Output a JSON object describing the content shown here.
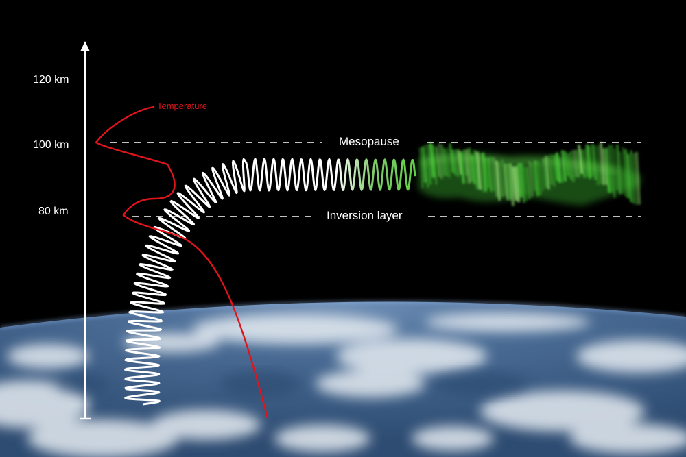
{
  "altitude_axis": {
    "ticks": [
      "120 km",
      "100 km",
      "80 km"
    ]
  },
  "layers": {
    "upper": "Mesopause",
    "lower": "Inversion layer"
  },
  "temperature_label": "Temperature",
  "colors": {
    "background": "#000000",
    "axis": "#ffffff",
    "temperature": "#e0151b",
    "wave": "#ffffff",
    "airglow": "#45d23a",
    "earth_ocean": "#3d5f86",
    "clouds": "#e6ecf2"
  }
}
